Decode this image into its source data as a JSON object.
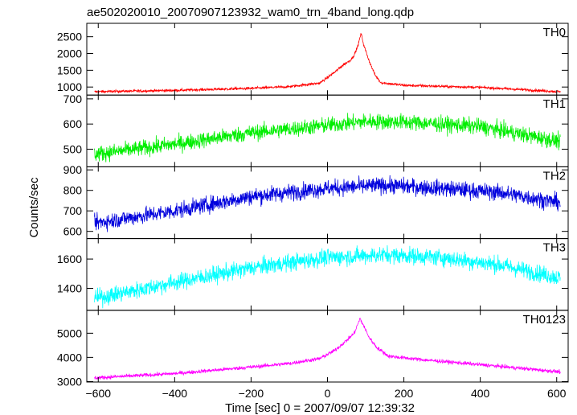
{
  "figure": {
    "title": "ae502020010_20070907123932_wam0_trn_4band_long.qdp",
    "xlabel": "Time [sec] 0 = 2007/09/07 12:39:32",
    "ylabel": "Counts/sec"
  },
  "chart_data": {
    "type": "line",
    "layout": "stacked-panels-shared-x",
    "xlim": [
      -630,
      630
    ],
    "x_ticks": [
      -600,
      -400,
      -200,
      0,
      200,
      400,
      600
    ],
    "x_tick_labels": [
      "−600",
      "−400",
      "−200",
      "0",
      "200",
      "400",
      "600"
    ],
    "grid": false,
    "panels": [
      {
        "name": "TH0",
        "color": "#ff0000",
        "ylim": [
          760,
          2900
        ],
        "y_ticks": [
          1000,
          1500,
          2000,
          2500
        ],
        "noise": 38,
        "profile": [
          [
            -610,
            860
          ],
          [
            -400,
            900
          ],
          [
            -200,
            960
          ],
          [
            -100,
            1010
          ],
          [
            -20,
            1120
          ],
          [
            20,
            1450
          ],
          [
            40,
            1650
          ],
          [
            60,
            1800
          ],
          [
            70,
            1950
          ],
          [
            80,
            2250
          ],
          [
            88,
            2600
          ],
          [
            95,
            2250
          ],
          [
            110,
            1750
          ],
          [
            125,
            1350
          ],
          [
            140,
            1130
          ],
          [
            200,
            1050
          ],
          [
            400,
            990
          ],
          [
            610,
            860
          ]
        ]
      },
      {
        "name": "TH1",
        "color": "#00ee00",
        "ylim": [
          430,
          715
        ],
        "y_ticks": [
          500,
          600,
          700
        ],
        "noise": 30,
        "profile": [
          [
            -610,
            480
          ],
          [
            -400,
            520
          ],
          [
            -200,
            565
          ],
          [
            0,
            595
          ],
          [
            100,
            610
          ],
          [
            200,
            608
          ],
          [
            400,
            590
          ],
          [
            610,
            530
          ]
        ]
      },
      {
        "name": "TH2",
        "color": "#0000dd",
        "ylim": [
          565,
          915
        ],
        "y_ticks": [
          600,
          700,
          800,
          900
        ],
        "noise": 38,
        "profile": [
          [
            -610,
            640
          ],
          [
            -400,
            700
          ],
          [
            -200,
            770
          ],
          [
            0,
            810
          ],
          [
            150,
            825
          ],
          [
            300,
            810
          ],
          [
            450,
            790
          ],
          [
            610,
            740
          ]
        ]
      },
      {
        "name": "TH3",
        "color": "#00ffff",
        "ylim": [
          1250,
          1740
        ],
        "y_ticks": [
          1400,
          1600
        ],
        "noise": 55,
        "profile": [
          [
            -610,
            1330
          ],
          [
            -400,
            1440
          ],
          [
            -200,
            1540
          ],
          [
            0,
            1610
          ],
          [
            150,
            1630
          ],
          [
            300,
            1610
          ],
          [
            450,
            1560
          ],
          [
            610,
            1470
          ]
        ]
      },
      {
        "name": "TH0123",
        "color": "#ff00ff",
        "ylim": [
          2980,
          5950
        ],
        "y_ticks": [
          3000,
          4000,
          5000
        ],
        "noise": 75,
        "profile": [
          [
            -610,
            3150
          ],
          [
            -400,
            3330
          ],
          [
            -200,
            3600
          ],
          [
            -100,
            3750
          ],
          [
            -20,
            3950
          ],
          [
            20,
            4300
          ],
          [
            50,
            4700
          ],
          [
            70,
            5000
          ],
          [
            85,
            5600
          ],
          [
            95,
            5300
          ],
          [
            110,
            4800
          ],
          [
            130,
            4400
          ],
          [
            160,
            4050
          ],
          [
            250,
            3900
          ],
          [
            400,
            3700
          ],
          [
            610,
            3400
          ]
        ]
      }
    ]
  }
}
